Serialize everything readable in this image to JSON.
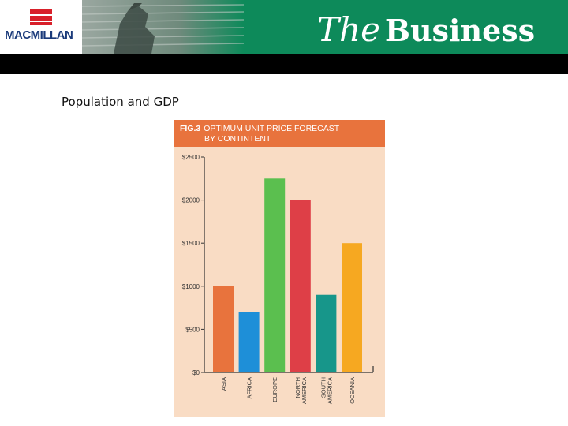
{
  "brand": {
    "publisher": "MACMILLAN",
    "book_title_the": "The",
    "book_title_business": "Business"
  },
  "slide": {
    "subtitle": "Population and GDP"
  },
  "colors": {
    "header_green": "#0d8a5a",
    "figure_orange": "#e8733d",
    "figure_bg": "#f9dcc4"
  },
  "chart_data": {
    "type": "bar",
    "figure_label": "FIG.3",
    "title_line1": "OPTIMUM UNIT PRICE FORECAST",
    "title_line2": "BY CONTINTENT",
    "categories": [
      "ASIA",
      "AFRICA",
      "EUROPE",
      "NORTH AMERICA",
      "SOUTH AMERICA",
      "OCEANIA"
    ],
    "category_lines": [
      [
        "ASIA"
      ],
      [
        "AFRICA"
      ],
      [
        "EUROPE"
      ],
      [
        "NORTH",
        "AMERICA"
      ],
      [
        "SOUTH",
        "AMERICA"
      ],
      [
        "OCEANIA"
      ]
    ],
    "values": [
      1000,
      700,
      2250,
      2000,
      900,
      1500
    ],
    "colors": [
      "#e8733d",
      "#1e8fd8",
      "#5bbf4f",
      "#de3f47",
      "#17968a",
      "#f6a821"
    ],
    "yticks": [
      0,
      500,
      1000,
      1500,
      2000,
      2500
    ],
    "ytick_labels": [
      "$0",
      "$500",
      "$1000",
      "$1500",
      "$2000",
      "$2500"
    ],
    "ylim": [
      0,
      2500
    ],
    "grid": false
  }
}
